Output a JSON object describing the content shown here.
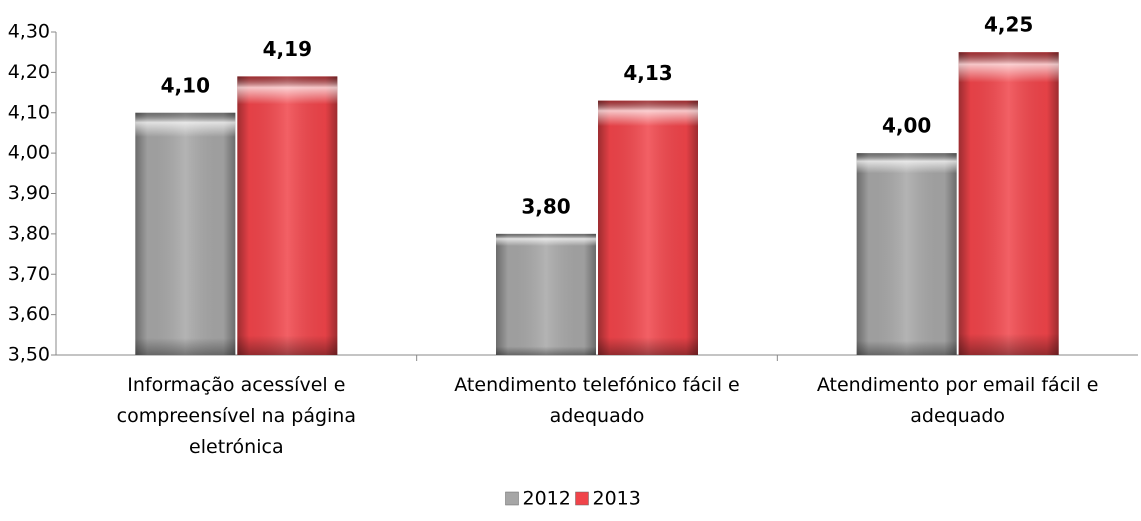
{
  "chart_data": {
    "type": "bar",
    "categories": [
      "Informação acessível e compreensível na página eletrónica",
      "Atendimento telefónico fácil e adequado",
      "Atendimento por email fácil e adequado"
    ],
    "series": [
      {
        "name": "2012",
        "color": "#a6a6a6",
        "values": [
          4.1,
          3.8,
          4.0
        ],
        "value_labels": [
          "4,10",
          "3,80",
          "4,00"
        ]
      },
      {
        "name": "2013",
        "color": "#f0444a",
        "values": [
          4.19,
          4.13,
          4.25
        ],
        "value_labels": [
          "4,19",
          "4,13",
          "4,25"
        ]
      }
    ],
    "ylim": [
      3.5,
      4.3
    ],
    "yticks": [
      {
        "value": 3.5,
        "label": "3,50"
      },
      {
        "value": 3.6,
        "label": "3,60"
      },
      {
        "value": 3.7,
        "label": "3,70"
      },
      {
        "value": 3.8,
        "label": "3,80"
      },
      {
        "value": 3.9,
        "label": "3,90"
      },
      {
        "value": 4.0,
        "label": "4,00"
      },
      {
        "value": 4.1,
        "label": "4,10"
      },
      {
        "value": 4.2,
        "label": "4,20"
      },
      {
        "value": 4.3,
        "label": "4,30"
      }
    ],
    "grid": false,
    "legend": "bottom"
  }
}
